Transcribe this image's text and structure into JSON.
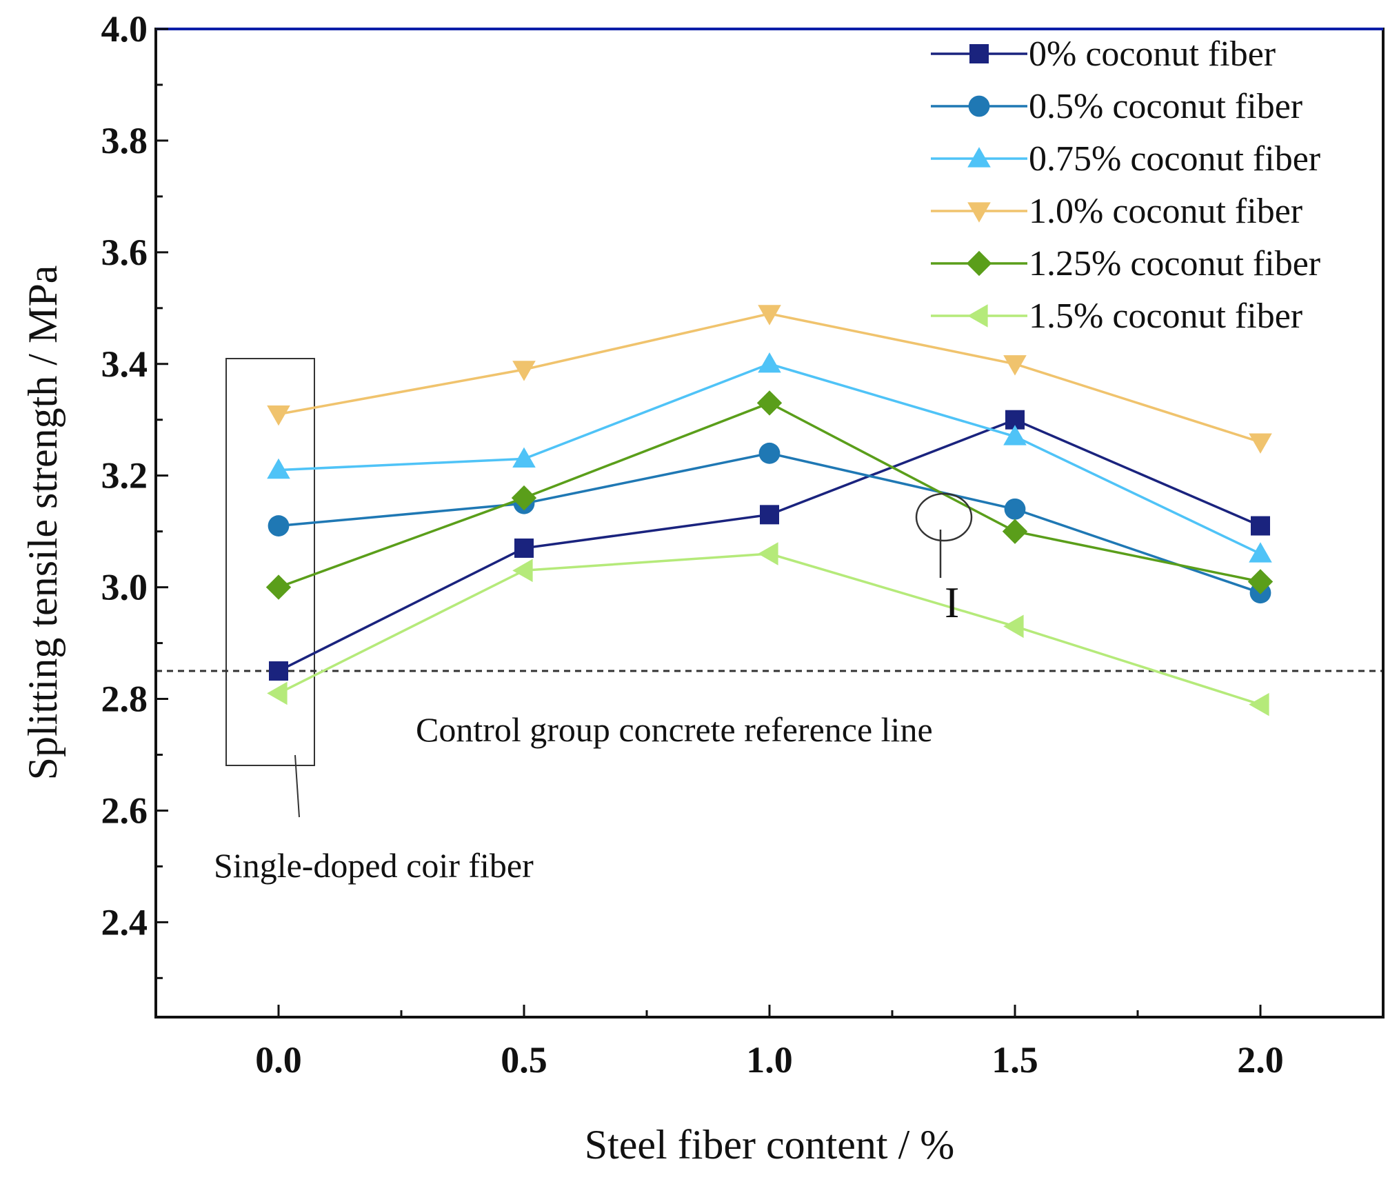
{
  "chart_data": {
    "type": "line",
    "title": "",
    "xlabel": "Steel fiber content / %",
    "ylabel": "Splitting tensile strength / MPa",
    "x": [
      0.0,
      0.5,
      1.0,
      1.5,
      2.0
    ],
    "x_tick_labels": [
      "0.0",
      "0.5",
      "1.0",
      "1.5",
      "2.0"
    ],
    "y_tick_labels": [
      "2.4",
      "2.6",
      "2.8",
      "3.0",
      "3.2",
      "3.4",
      "3.6",
      "3.8",
      "4.0"
    ],
    "xlim": [
      -0.25,
      2.25
    ],
    "ylim": [
      2.23,
      4.0
    ],
    "series": [
      {
        "name": "0% coconut fiber",
        "color": "#1a237e",
        "marker": "square",
        "values": [
          2.85,
          3.07,
          3.13,
          3.3,
          3.11
        ]
      },
      {
        "name": "0.5% coconut fiber",
        "color": "#1f78b4",
        "marker": "circle",
        "values": [
          3.11,
          3.15,
          3.24,
          3.14,
          2.99
        ]
      },
      {
        "name": "0.75% coconut fiber",
        "color": "#4fc3f7",
        "marker": "triangle-up",
        "values": [
          3.21,
          3.23,
          3.4,
          3.27,
          3.06
        ]
      },
      {
        "name": "1.0% coconut fiber",
        "color": "#f0c36d",
        "marker": "triangle-down",
        "values": [
          3.31,
          3.39,
          3.49,
          3.4,
          3.26
        ]
      },
      {
        "name": "1.25% coconut fiber",
        "color": "#5a9e1a",
        "marker": "diamond",
        "values": [
          3.0,
          3.16,
          3.33,
          3.1,
          3.01
        ]
      },
      {
        "name": "1.5% coconut fiber",
        "color": "#b5ea7a",
        "marker": "triangle-left",
        "values": [
          2.81,
          3.03,
          3.06,
          2.93,
          2.79
        ]
      }
    ],
    "reference_line": {
      "y": 2.85,
      "label": "Control group concrete reference line"
    },
    "annotations": {
      "box_label": "Single-doped coir fiber",
      "circle_label": "I"
    },
    "legend_position": "top-right",
    "grid": false
  }
}
